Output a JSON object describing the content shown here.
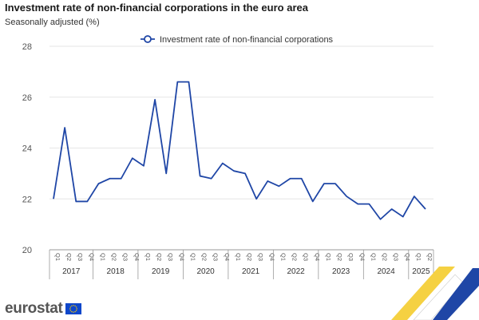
{
  "title": "Investment rate of non-financial corporations in the euro area",
  "subtitle": "Seasonally adjusted (%)",
  "brand": "eurostat",
  "chart_data": {
    "type": "line",
    "title": "Investment rate of non-financial corporations in the euro area",
    "subtitle": "Seasonally adjusted (%)",
    "xlabel": "",
    "ylabel": "",
    "ylim": [
      20,
      28
    ],
    "yticks": [
      20,
      22,
      24,
      26,
      28
    ],
    "grid": true,
    "legend": "top-center",
    "years": [
      {
        "label": "2017",
        "quarters": [
          "Q1",
          "Q2",
          "Q3",
          "Q4"
        ]
      },
      {
        "label": "2018",
        "quarters": [
          "Q1",
          "Q2",
          "Q3",
          "Q4"
        ]
      },
      {
        "label": "2019",
        "quarters": [
          "Q1",
          "Q2",
          "Q3",
          "Q4"
        ]
      },
      {
        "label": "2020",
        "quarters": [
          "Q1",
          "Q2",
          "Q3",
          "Q4"
        ]
      },
      {
        "label": "2021",
        "quarters": [
          "Q1",
          "Q2",
          "Q3",
          "Q4"
        ]
      },
      {
        "label": "2022",
        "quarters": [
          "Q1",
          "Q2",
          "Q3",
          "Q4"
        ]
      },
      {
        "label": "2023",
        "quarters": [
          "Q1",
          "Q2",
          "Q3",
          "Q4"
        ]
      },
      {
        "label": "2024",
        "quarters": [
          "Q1",
          "Q2",
          "Q3",
          "Q4"
        ]
      },
      {
        "label": "2025",
        "quarters": [
          "Q1",
          "Q2"
        ]
      }
    ],
    "series": [
      {
        "name": "Investment rate of non-financial corporations",
        "color": "#1f46a6",
        "values": [
          22.0,
          24.8,
          21.9,
          21.9,
          22.6,
          22.8,
          22.8,
          23.6,
          23.3,
          25.9,
          23.0,
          26.6,
          26.6,
          22.9,
          22.8,
          23.4,
          23.1,
          23.0,
          22.0,
          22.7,
          22.5,
          22.8,
          22.8,
          21.9,
          22.6,
          22.6,
          22.1,
          21.8,
          21.8,
          21.2,
          21.6,
          21.3,
          22.1,
          21.6
        ]
      }
    ]
  },
  "colors": {
    "line": "#1f46a6",
    "grid": "#e6e6e6",
    "axis": "#999999",
    "brand_grey": "#555555",
    "flag_blue": "#0e47cb",
    "flag_star": "#ffcc00"
  }
}
